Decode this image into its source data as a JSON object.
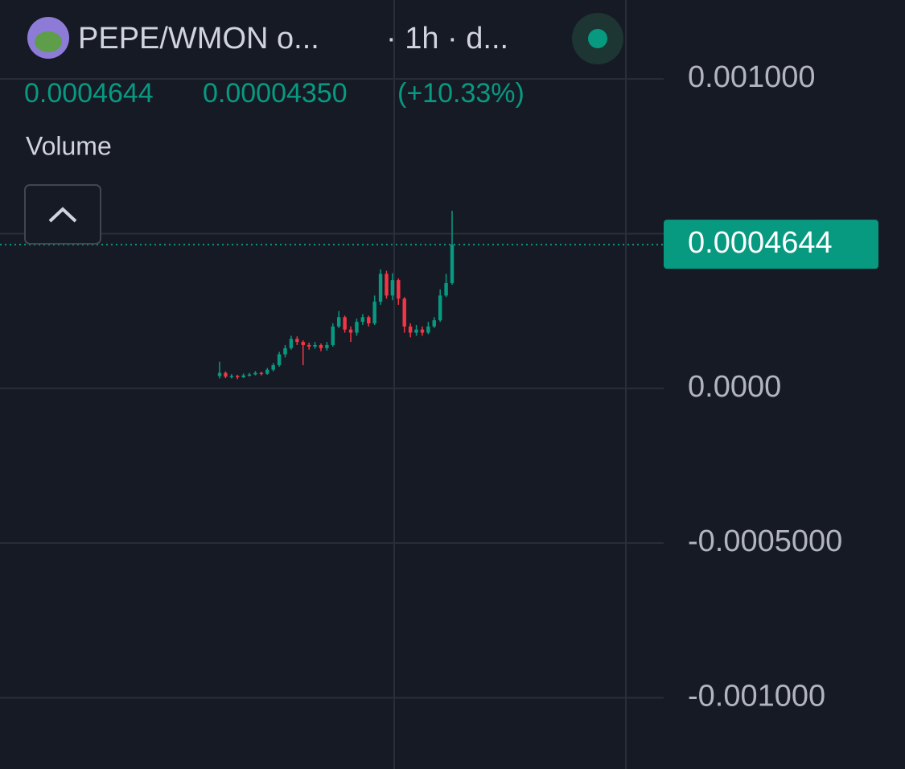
{
  "chart_data": {
    "type": "candlestick",
    "header": {
      "symbol": "PEPE/WMON o...",
      "interval": "· 1h · d...",
      "price": "0.0004644",
      "change": "0.00004350",
      "change_pct": "(+10.33%)",
      "indicator": "Volume"
    },
    "up_color": "#089981",
    "down_color": "#f23645",
    "ylim": [
      -0.00123,
      0.001255
    ],
    "yticks": [
      {
        "value": 0.001,
        "label": "0.001000"
      },
      {
        "value": 0,
        "label": "0.0000"
      },
      {
        "value": -0.0005,
        "label": "-0.0005000"
      },
      {
        "value": -0.001,
        "label": "-0.001000"
      }
    ],
    "ygrid": [
      0.001,
      0.0005,
      0,
      -0.0005,
      -0.001
    ],
    "grid": true,
    "last_price": {
      "value": 0.0004644,
      "label": "0.0004644"
    },
    "candles": {
      "open": [
        4e-05,
        5e-05,
        3.8e-05,
        4e-05,
        3.6e-05,
        4.2e-05,
        4.5e-05,
        5e-05,
        4.7e-05,
        6e-05,
        7.5e-05,
        0.00011,
        0.00013,
        0.00016,
        0.00015,
        0.00014,
        0.000135,
        0.00014,
        0.00013,
        0.00014,
        0.0002,
        0.00023,
        0.00019,
        0.00018,
        0.000215,
        0.00023,
        0.00021,
        0.00028,
        0.00037,
        0.0003,
        0.00035,
        0.00029,
        0.0002,
        0.00018,
        0.00019,
        0.00018,
        0.0002,
        0.00022,
        0.0003,
        0.00034
      ],
      "high": [
        8.6e-05,
        5.5e-05,
        4.6e-05,
        4.4e-05,
        4.8e-05,
        5e-05,
        5.6e-05,
        5.4e-05,
        6.6e-05,
        8.2e-05,
        0.000118,
        0.00014,
        0.00017,
        0.000168,
        0.000155,
        0.000148,
        0.00015,
        0.000145,
        0.00015,
        0.00021,
        0.00025,
        0.000235,
        0.0002,
        0.000225,
        0.00024,
        0.000235,
        0.0003,
        0.000385,
        0.00038,
        0.000372,
        0.000355,
        0.000295,
        0.00021,
        0.000205,
        0.0002,
        0.000215,
        0.00023,
        0.00032,
        0.00037,
        0.000574
      ],
      "low": [
        3.2e-05,
        3.3e-05,
        3.2e-05,
        3e-05,
        3.3e-05,
        3.8e-05,
        4.2e-05,
        4.2e-05,
        4.4e-05,
        5.5e-05,
        7e-05,
        0.0001,
        0.000125,
        0.00014,
        7.5e-05,
        0.000125,
        0.000128,
        0.00012,
        0.000122,
        0.000135,
        0.000195,
        0.00018,
        0.00015,
        0.00017,
        0.000205,
        0.0002,
        0.000205,
        0.00027,
        0.00029,
        0.000285,
        0.00027,
        0.00018,
        0.000165,
        0.00017,
        0.00017,
        0.000175,
        0.000195,
        0.000215,
        0.000295,
        0.000335
      ],
      "close": [
        5e-05,
        3.8e-05,
        4e-05,
        3.6e-05,
        4.2e-05,
        4.5e-05,
        5e-05,
        4.7e-05,
        6e-05,
        7.5e-05,
        0.00011,
        0.00013,
        0.00016,
        0.00015,
        0.00014,
        0.000135,
        0.00014,
        0.00013,
        0.00014,
        0.0002,
        0.00023,
        0.00019,
        0.00018,
        0.000215,
        0.00023,
        0.00021,
        0.00028,
        0.00037,
        0.0003,
        0.00035,
        0.00029,
        0.0002,
        0.00018,
        0.00019,
        0.00018,
        0.0002,
        0.00022,
        0.0003,
        0.00034,
        0.0004644
      ]
    }
  }
}
